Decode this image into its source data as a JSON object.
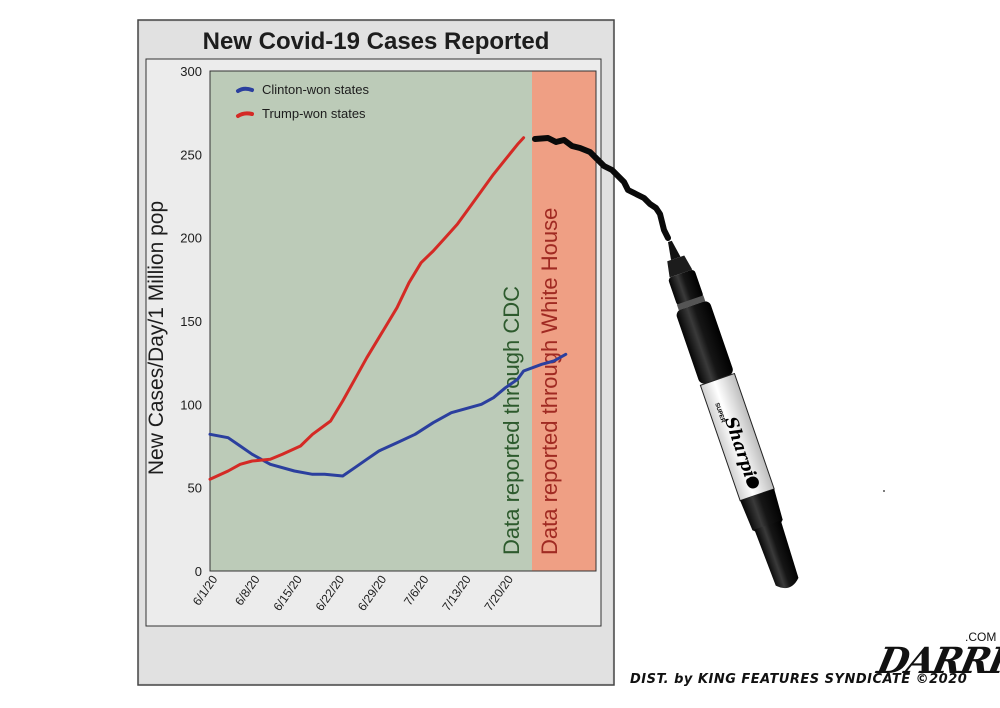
{
  "chart_data": {
    "type": "line",
    "title": "New Covid-19 Cases Reported",
    "ylabel": "New Cases/Day/1 Million pop",
    "xlabel": "",
    "ylim": [
      0,
      300
    ],
    "yticks": [
      "0",
      "50",
      "100",
      "150",
      "200",
      "250",
      "300"
    ],
    "xticks": [
      "6/1/20",
      "6/8/20",
      "6/15/20",
      "6/22/20",
      "6/29/20",
      "7/6/20",
      "7/13/20",
      "7/20/20"
    ],
    "grid": false,
    "legend_position": "top-left",
    "series": [
      {
        "name": "Clinton-won states",
        "color": "#2b3f9e",
        "x": [
          0,
          3,
          5,
          7,
          10,
          14,
          17,
          19,
          22,
          24,
          26,
          28,
          31,
          34,
          37,
          40,
          43,
          45,
          47,
          49,
          51,
          52,
          55,
          57,
          59
        ],
        "values": [
          82,
          80,
          75,
          70,
          64,
          60,
          58,
          58,
          57,
          62,
          67,
          72,
          77,
          82,
          89,
          95,
          98,
          100,
          104,
          110,
          115,
          120,
          124,
          126,
          130
        ]
      },
      {
        "name": "Trump-won states",
        "color": "#d42a25",
        "x": [
          0,
          3,
          5,
          7,
          10,
          12,
          15,
          17,
          20,
          22,
          24,
          26,
          28,
          31,
          33,
          35,
          37,
          39,
          41,
          43,
          45,
          47,
          49,
          51,
          52
        ],
        "values": [
          55,
          60,
          64,
          66,
          67,
          70,
          75,
          82,
          90,
          102,
          115,
          128,
          140,
          158,
          173,
          185,
          192,
          200,
          208,
          218,
          228,
          238,
          247,
          256,
          260
        ]
      }
    ],
    "annotations": [
      "Data reported through CDC",
      "Data reported through White House"
    ]
  },
  "colors": {
    "cdc_region": "#bccbb8",
    "white_house_region": "#ef9f84",
    "cdc_text": "#2d5a2d",
    "white_house_text": "#a02a22",
    "background": "#ffffff",
    "card": "#dedede"
  },
  "decorations": {
    "marker_label": "Sharpie",
    "marker_brand": "SUPER",
    "syndicate_credit": "DIST. by KING FEATURES SYNDICATE ©2020",
    "signature": "DARRINBELL",
    "signature_domain": ".COM"
  }
}
